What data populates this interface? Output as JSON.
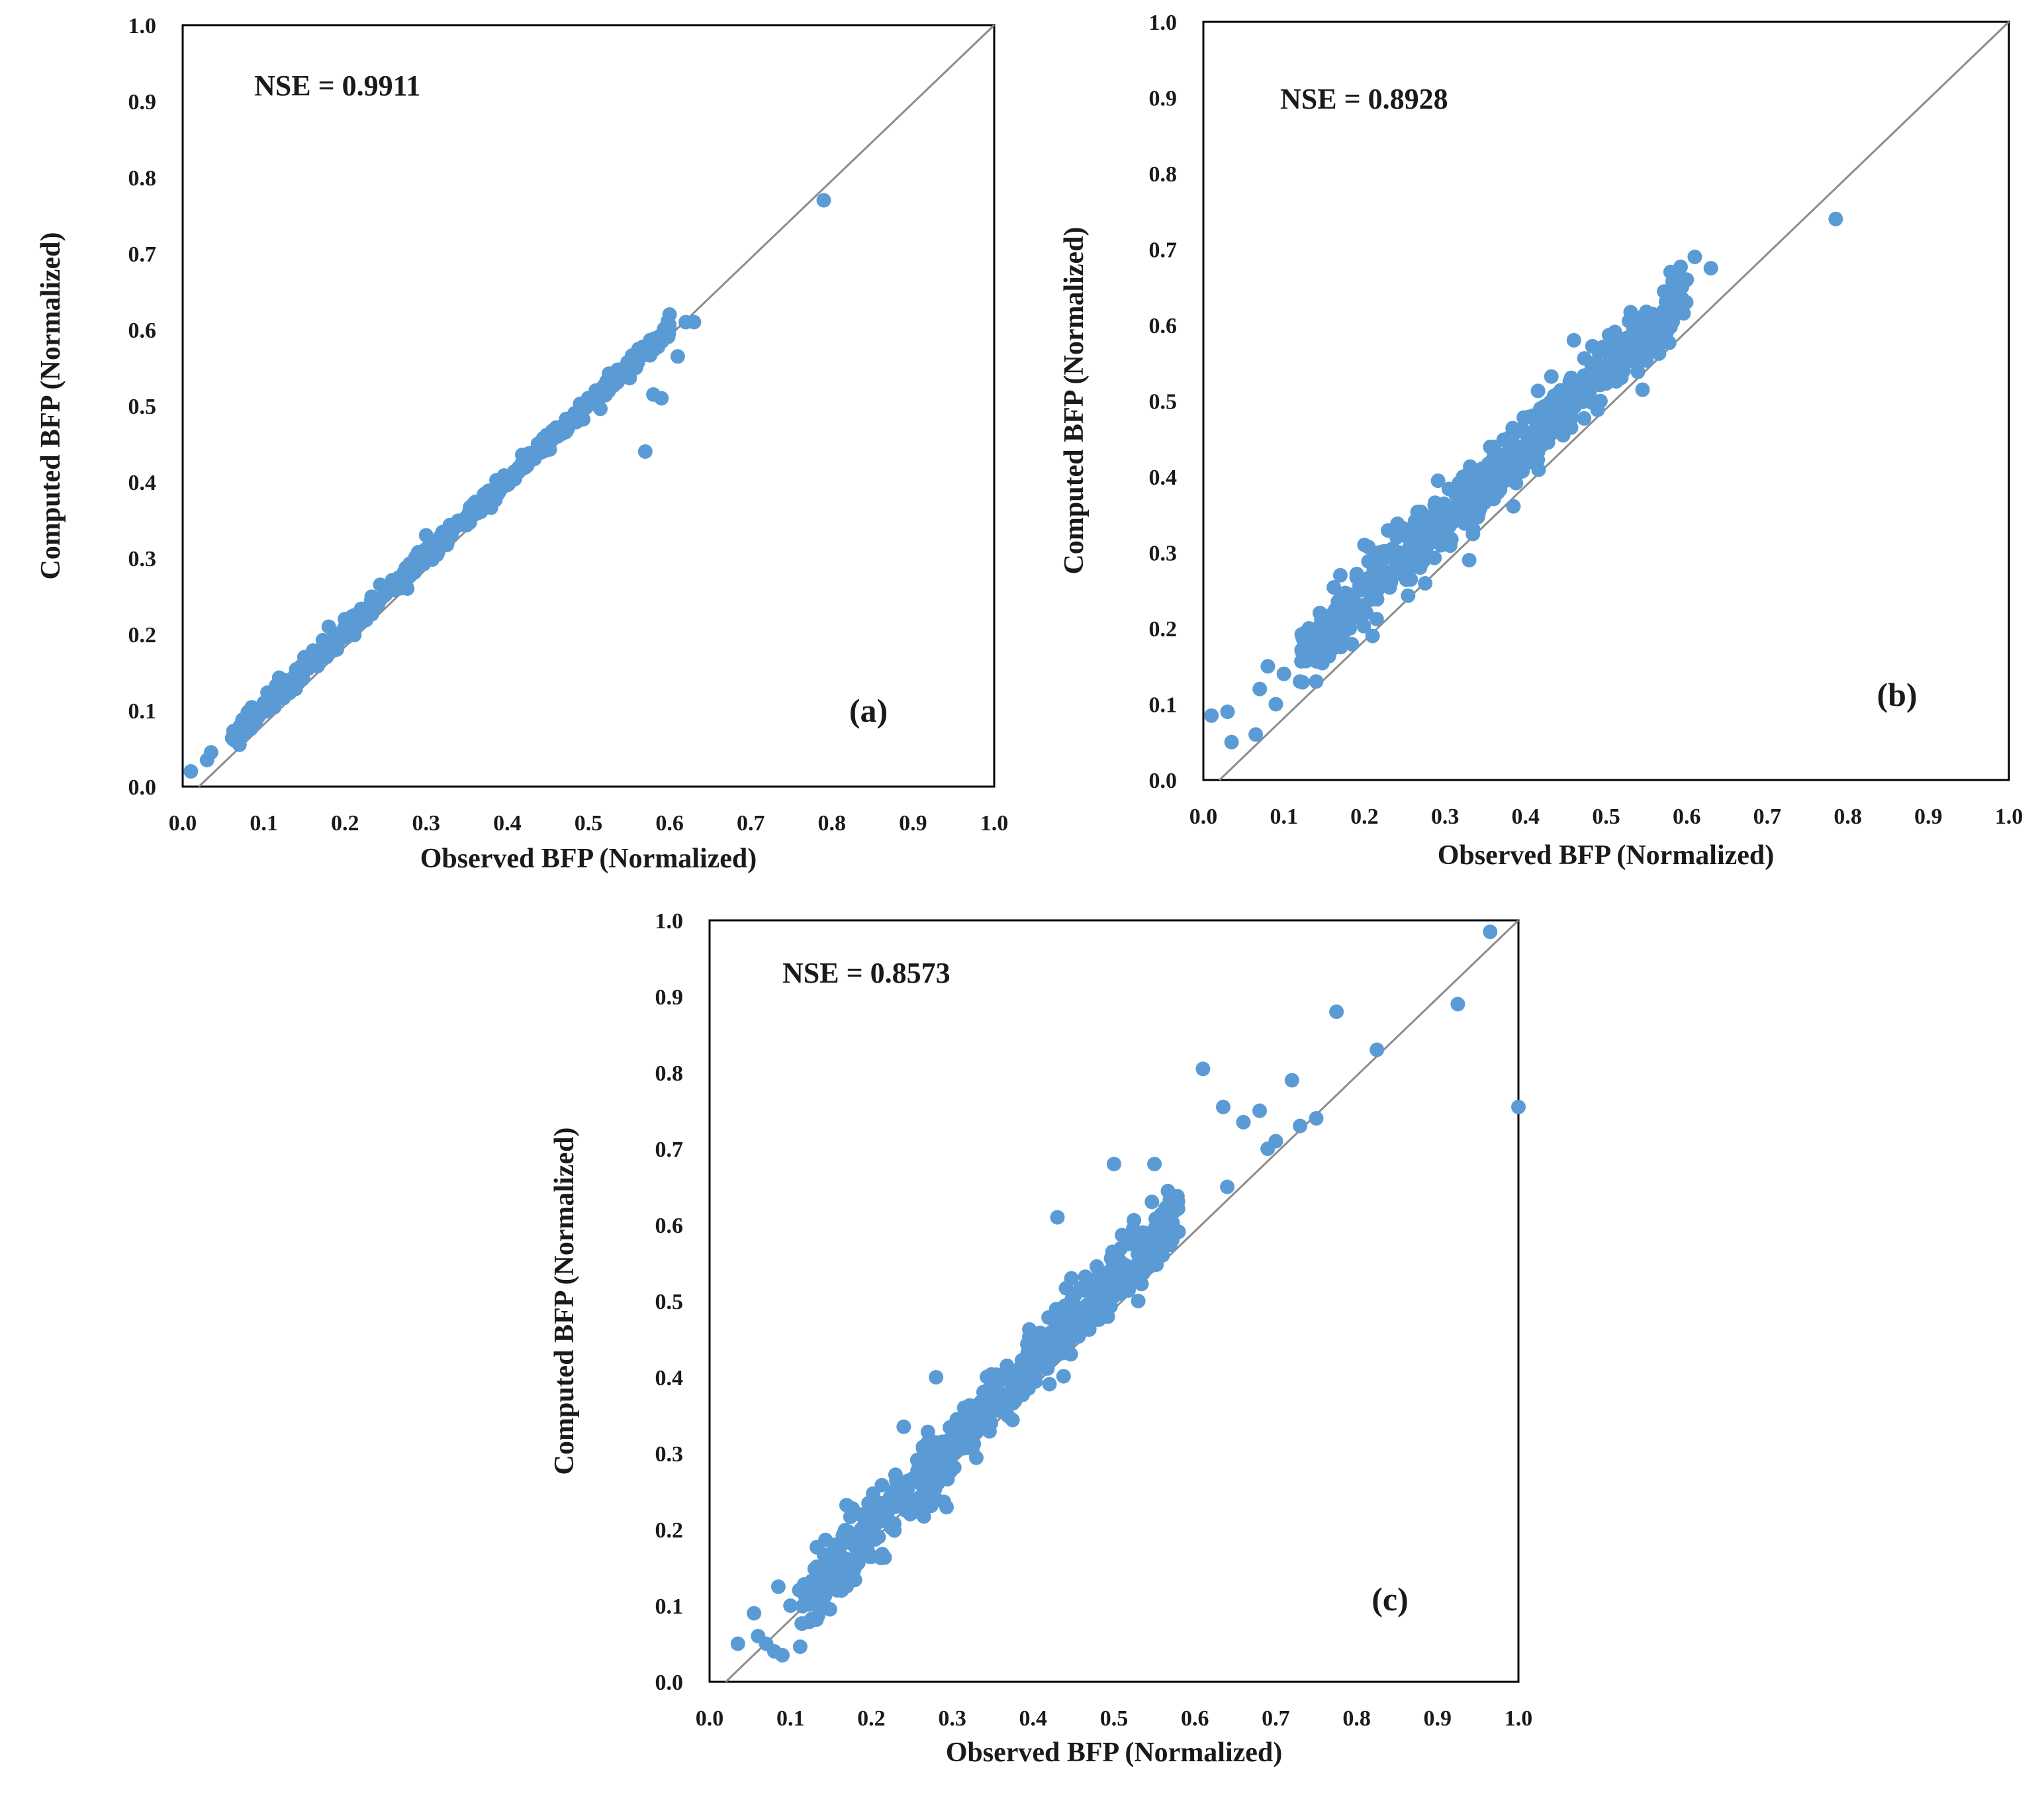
{
  "chart_data": [
    {
      "type": "scatter",
      "panel_label": "(a)",
      "annotation": "NSE = 0.9911",
      "xlabel": "Observed BFP (Normalized)",
      "ylabel": "Computed  BFP (Normalized)",
      "xlim": [
        0,
        1
      ],
      "ylim": [
        0,
        1
      ],
      "xticks": [
        "0.0",
        "0.1",
        "0.2",
        "0.3",
        "0.4",
        "0.5",
        "0.6",
        "0.7",
        "0.8",
        "0.9",
        "1.0"
      ],
      "yticks": [
        "0.0",
        "0.1",
        "0.2",
        "0.3",
        "0.4",
        "0.5",
        "0.6",
        "0.7",
        "0.8",
        "0.9",
        "1.0"
      ],
      "reference_line": "1:1",
      "marker_color": "#5b9bd5",
      "line_color": "#8c8c8c",
      "fit": {
        "slope": 0.995,
        "intercept": 0.005,
        "spread": 0.006,
        "x_min": 0.06,
        "x_max": 0.6,
        "count": 520
      },
      "points": [
        [
          0.01,
          0.02
        ],
        [
          0.03,
          0.035
        ],
        [
          0.035,
          0.045
        ],
        [
          0.065,
          0.06
        ],
        [
          0.07,
          0.055
        ],
        [
          0.08,
          0.09
        ],
        [
          0.09,
          0.085
        ],
        [
          0.1,
          0.11
        ],
        [
          0.15,
          0.17
        ],
        [
          0.16,
          0.16
        ],
        [
          0.18,
          0.21
        ],
        [
          0.19,
          0.18
        ],
        [
          0.2,
          0.22
        ],
        [
          0.22,
          0.22
        ],
        [
          0.25,
          0.26
        ],
        [
          0.3,
          0.33
        ],
        [
          0.57,
          0.44
        ],
        [
          0.58,
          0.515
        ],
        [
          0.59,
          0.51
        ],
        [
          0.61,
          0.565
        ],
        [
          0.62,
          0.61
        ],
        [
          0.63,
          0.61
        ],
        [
          0.6,
          0.62
        ],
        [
          0.79,
          0.77
        ]
      ]
    },
    {
      "type": "scatter",
      "panel_label": "(b)",
      "annotation": "NSE = 0.8928",
      "xlabel": "Observed BFP (Normalized)",
      "ylabel": "Computed  BFP (Normalized)",
      "xlim": [
        0,
        1
      ],
      "ylim": [
        0,
        1
      ],
      "xticks": [
        "0.0",
        "0.1",
        "0.2",
        "0.3",
        "0.4",
        "0.5",
        "0.6",
        "0.7",
        "0.8",
        "0.9",
        "1.0"
      ],
      "yticks": [
        "0.0",
        "0.1",
        "0.2",
        "0.3",
        "0.4",
        "0.5",
        "0.6",
        "0.7",
        "0.8",
        "0.9",
        "1.0"
      ],
      "reference_line": "1:1",
      "marker_color": "#5b9bd5",
      "line_color": "#8c8c8c",
      "fit": {
        "slope": 0.98,
        "intercept": 0.05,
        "spread": 0.022,
        "x_min": 0.12,
        "x_max": 0.6,
        "count": 650
      },
      "points": [
        [
          0.01,
          0.085
        ],
        [
          0.03,
          0.09
        ],
        [
          0.035,
          0.05
        ],
        [
          0.065,
          0.06
        ],
        [
          0.07,
          0.12
        ],
        [
          0.08,
          0.15
        ],
        [
          0.09,
          0.1
        ],
        [
          0.1,
          0.14
        ],
        [
          0.12,
          0.13
        ],
        [
          0.14,
          0.13
        ],
        [
          0.15,
          0.2
        ],
        [
          0.17,
          0.27
        ],
        [
          0.18,
          0.24
        ],
        [
          0.2,
          0.31
        ],
        [
          0.21,
          0.19
        ],
        [
          0.24,
          0.32
        ],
        [
          0.33,
          0.29
        ],
        [
          0.46,
          0.58
        ],
        [
          0.58,
          0.67
        ],
        [
          0.6,
          0.66
        ],
        [
          0.61,
          0.69
        ],
        [
          0.63,
          0.675
        ],
        [
          0.785,
          0.74
        ]
      ]
    },
    {
      "type": "scatter",
      "panel_label": "(c)",
      "annotation": "NSE = 0.8573",
      "xlabel": "Observed BFP (Normalized)",
      "ylabel": "Computed  BFP (Normalized)",
      "xlim": [
        0,
        1
      ],
      "ylim": [
        0,
        1
      ],
      "xticks": [
        "0.0",
        "0.1",
        "0.2",
        "0.3",
        "0.4",
        "0.5",
        "0.6",
        "0.7",
        "0.8",
        "0.9",
        "1.0"
      ],
      "yticks": [
        "0.0",
        "0.1",
        "0.2",
        "0.3",
        "0.4",
        "0.5",
        "0.6",
        "0.7",
        "0.8",
        "0.9",
        "1.0"
      ],
      "reference_line": "1:1",
      "marker_color": "#5b9bd5",
      "line_color": "#8c8c8c",
      "fit": {
        "slope": 1.1,
        "intercept": -0.02,
        "spread": 0.022,
        "x_min": 0.11,
        "x_max": 0.58,
        "count": 650
      },
      "points": [
        [
          0.035,
          0.05
        ],
        [
          0.055,
          0.09
        ],
        [
          0.06,
          0.06
        ],
        [
          0.07,
          0.05
        ],
        [
          0.08,
          0.04
        ],
        [
          0.09,
          0.035
        ],
        [
          0.085,
          0.125
        ],
        [
          0.1,
          0.1
        ],
        [
          0.24,
          0.335
        ],
        [
          0.27,
          0.26
        ],
        [
          0.28,
          0.4
        ],
        [
          0.43,
          0.61
        ],
        [
          0.5,
          0.68
        ],
        [
          0.55,
          0.68
        ],
        [
          0.56,
          0.56
        ],
        [
          0.61,
          0.805
        ],
        [
          0.635,
          0.755
        ],
        [
          0.64,
          0.65
        ],
        [
          0.66,
          0.735
        ],
        [
          0.68,
          0.75
        ],
        [
          0.69,
          0.7
        ],
        [
          0.7,
          0.71
        ],
        [
          0.72,
          0.79
        ],
        [
          0.73,
          0.73
        ],
        [
          0.75,
          0.74
        ],
        [
          0.775,
          0.88
        ],
        [
          0.825,
          0.83
        ],
        [
          0.925,
          0.89
        ],
        [
          0.965,
          0.985
        ],
        [
          1.0,
          0.755
        ]
      ]
    }
  ]
}
